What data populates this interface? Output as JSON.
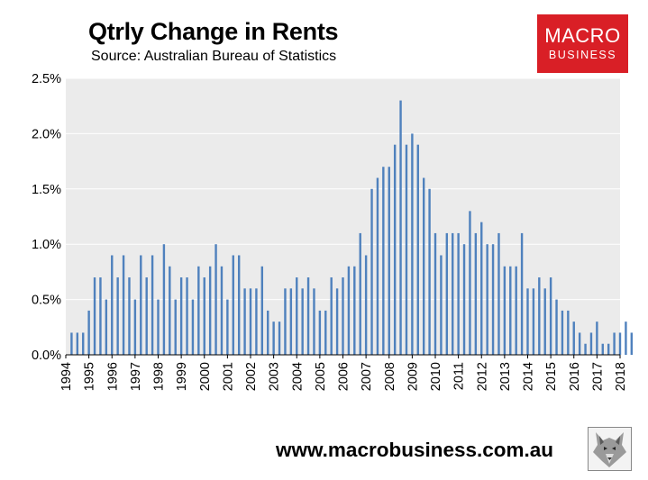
{
  "header": {
    "title": "Qtrly Change in Rents",
    "subtitle": "Source: Australian Bureau of Statistics"
  },
  "logo": {
    "line1": "MACRO",
    "line2": "BUSINESS",
    "color": "#d91f26"
  },
  "footer": {
    "url": "www.macrobusiness.com.au",
    "mascot_icon": "wolf-head-icon"
  },
  "colors": {
    "bar": "#4f81bd",
    "plot_background": "#ebebeb",
    "gridline": "#ffffff"
  },
  "chart_data": {
    "type": "bar",
    "title": "Qtrly Change in Rents",
    "xlabel": "",
    "ylabel": "",
    "ylim": [
      0,
      2.5
    ],
    "y_unit": "%",
    "y_ticks": [
      "0.0%",
      "0.5%",
      "1.0%",
      "1.5%",
      "2.0%",
      "2.5%"
    ],
    "y_tick_values": [
      0,
      0.5,
      1.0,
      1.5,
      2.0,
      2.5
    ],
    "x_tick_labels": [
      "1994",
      "1995",
      "1996",
      "1997",
      "1998",
      "1999",
      "2000",
      "2001",
      "2002",
      "2003",
      "2004",
      "2005",
      "2006",
      "2007",
      "2008",
      "2009",
      "2010",
      "2011",
      "2012",
      "2013",
      "2014",
      "2015",
      "2016",
      "2017",
      "2018"
    ],
    "grid": true,
    "legend": "none",
    "series": [
      {
        "start_period": "1994 Q2",
        "frequency": "quarterly",
        "values": [
          0.2,
          0.2,
          0.2,
          0.4,
          0.7,
          0.7,
          0.5,
          0.9,
          0.7,
          0.9,
          0.7,
          0.5,
          0.9,
          0.7,
          0.9,
          0.5,
          1.0,
          0.8,
          0.5,
          0.7,
          0.7,
          0.5,
          0.8,
          0.7,
          0.8,
          1.0,
          0.8,
          0.5,
          0.9,
          0.9,
          0.6,
          0.6,
          0.6,
          0.8,
          0.4,
          0.3,
          0.3,
          0.6,
          0.6,
          0.7,
          0.6,
          0.7,
          0.6,
          0.4,
          0.4,
          0.7,
          0.6,
          0.7,
          0.8,
          0.8,
          1.1,
          0.9,
          1.5,
          1.6,
          1.7,
          1.7,
          1.9,
          2.3,
          1.9,
          2.0,
          1.9,
          1.6,
          1.5,
          1.1,
          0.9,
          1.1,
          1.1,
          1.1,
          1.0,
          1.3,
          1.1,
          1.2,
          1.0,
          1.0,
          1.1,
          0.8,
          0.8,
          0.8,
          1.1,
          0.6,
          0.6,
          0.7,
          0.6,
          0.7,
          0.5,
          0.4,
          0.4,
          0.3,
          0.2,
          0.1,
          0.2,
          0.3,
          0.1,
          0.1,
          0.2,
          0.2,
          0.3,
          0.2
        ]
      }
    ]
  }
}
